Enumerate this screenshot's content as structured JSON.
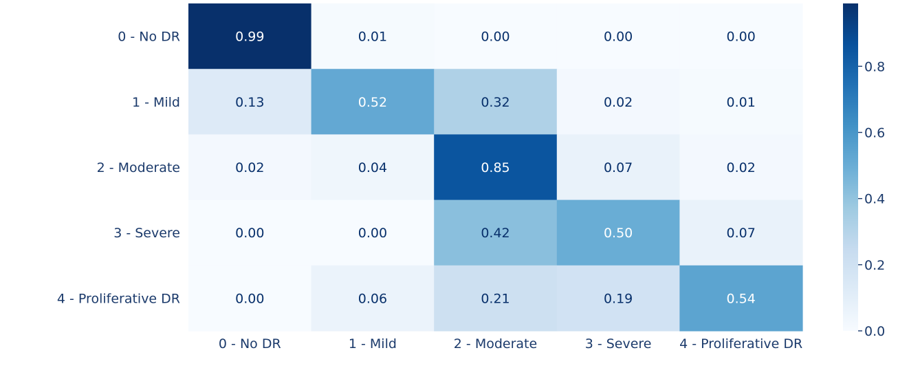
{
  "chart_data": {
    "type": "heatmap",
    "title": "",
    "xlabel": "",
    "ylabel": "",
    "x_categories": [
      "0 - No DR",
      "1 - Mild",
      "2 - Moderate",
      "3 - Severe",
      "4 - Proliferative DR"
    ],
    "y_categories": [
      "0 - No DR",
      "1 - Mild",
      "2 - Moderate",
      "3 - Severe",
      "4 - Proliferative DR"
    ],
    "values": [
      [
        0.99,
        0.01,
        0.0,
        0.0,
        0.0
      ],
      [
        0.13,
        0.52,
        0.32,
        0.02,
        0.01
      ],
      [
        0.02,
        0.04,
        0.85,
        0.07,
        0.02
      ],
      [
        0.0,
        0.0,
        0.42,
        0.5,
        0.07
      ],
      [
        0.0,
        0.06,
        0.21,
        0.19,
        0.54
      ]
    ],
    "value_format": "0.00",
    "colormap": "Blues",
    "colorbar": {
      "range": [
        0.0,
        0.99
      ],
      "ticks": [
        0.0,
        0.2,
        0.4,
        0.6,
        0.8
      ],
      "tick_labels": [
        "0.0",
        "0.2",
        "0.4",
        "0.6",
        "0.8"
      ],
      "placement": "right"
    },
    "grid": false,
    "text_color_dark": "#08306b",
    "text_color_light": "#ffffff",
    "tick_color": "#1b3a6b"
  }
}
